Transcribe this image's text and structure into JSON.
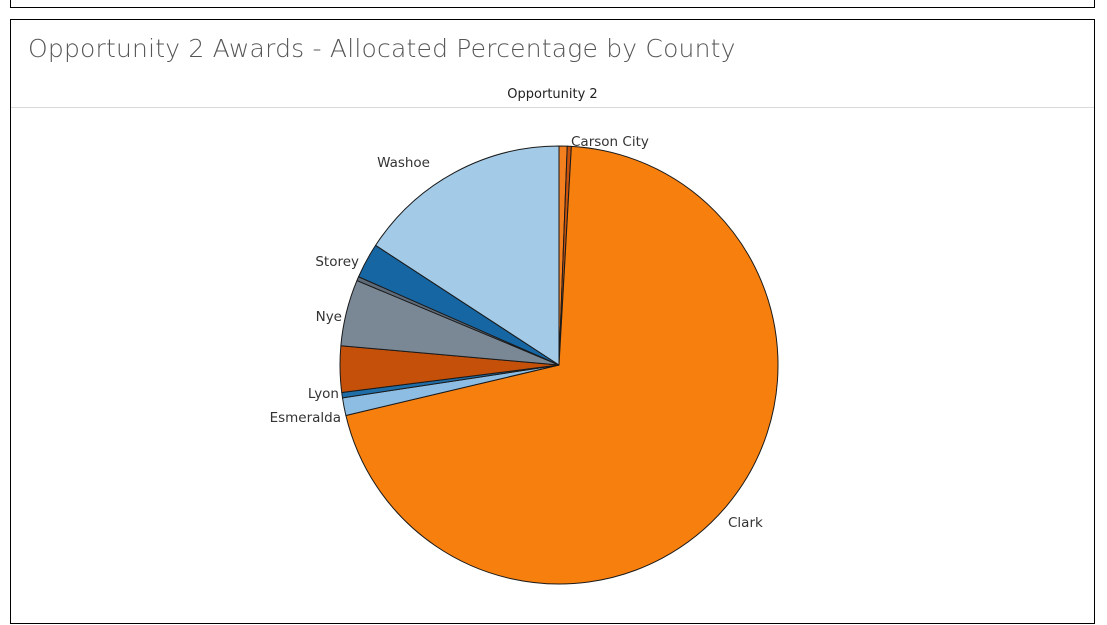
{
  "panel": {
    "title": "Opportunity 2 Awards - Allocated Percentage by County",
    "subtitle": "Opportunity 2"
  },
  "chart_data": {
    "type": "pie",
    "title": "Opportunity 2 Awards - Allocated Percentage by County",
    "subtitle": "Opportunity 2",
    "start_angle_deg": 0,
    "direction": "clockwise",
    "slices": [
      {
        "label": "Carson City",
        "value": 0.6,
        "color": "#f47f1e",
        "show_label": true
      },
      {
        "label": "",
        "value": 0.3,
        "color": "#c8510b",
        "show_label": false
      },
      {
        "label": "Clark",
        "value": 70.4,
        "color": "#f77f0e",
        "show_label": true
      },
      {
        "label": "Esmeralda",
        "value": 1.3,
        "color": "#8dbde3",
        "show_label": true
      },
      {
        "label": "",
        "value": 0.4,
        "color": "#1f6ea8",
        "show_label": false
      },
      {
        "label": "Lyon",
        "value": 3.4,
        "color": "#c5500a",
        "show_label": true
      },
      {
        "label": "Nye",
        "value": 4.9,
        "color": "#7a8795",
        "show_label": true
      },
      {
        "label": "",
        "value": 0.3,
        "color": "#5f6b78",
        "show_label": false
      },
      {
        "label": "Storey",
        "value": 2.6,
        "color": "#1666a3",
        "show_label": true
      },
      {
        "label": "Washoe",
        "value": 15.8,
        "color": "#a3cbe8",
        "show_label": true
      }
    ]
  }
}
